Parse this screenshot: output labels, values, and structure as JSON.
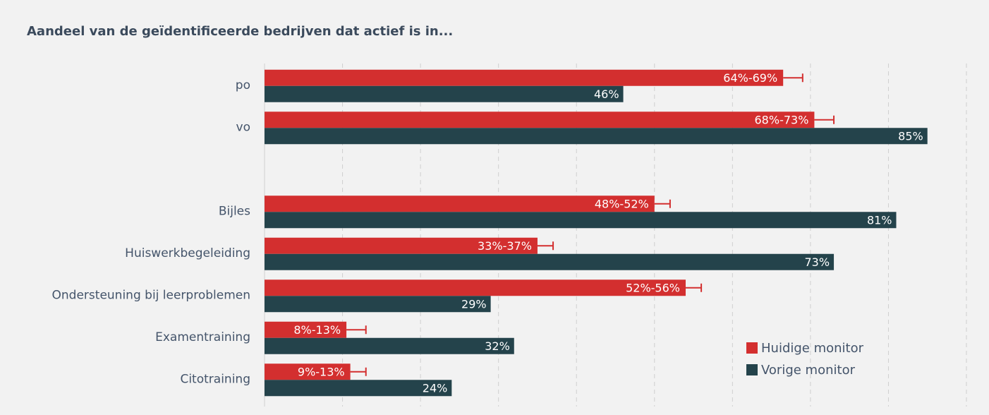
{
  "chart_data": {
    "type": "bar",
    "orientation": "horizontal",
    "title": "Aandeel van de geïdentificeerde bedrijven dat actief is in...",
    "categories": [
      "po",
      "vo",
      null,
      "Bijles",
      "Huiswerkbegeleiding",
      "Ondersteuning bij leerproblemen",
      "Examentraining",
      "Citotraining"
    ],
    "series": [
      {
        "name": "Huidige monitor",
        "color": "#d32f2f",
        "values": [
          66.5,
          70.5,
          null,
          50,
          35,
          54,
          10.5,
          11
        ],
        "errors": [
          2.5,
          2.5,
          null,
          2,
          2,
          2,
          2.5,
          2
        ],
        "value_labels": [
          "64%-69%",
          "68%-73%",
          null,
          "48%-52%",
          "33%-37%",
          "52%-56%",
          "8%-13%",
          "9%-13%"
        ]
      },
      {
        "name": "Vorige monitor",
        "color": "#24434b",
        "values": [
          46,
          85,
          null,
          81,
          73,
          29,
          32,
          24
        ],
        "value_labels": [
          "46%",
          "85%",
          null,
          "81%",
          "73%",
          "29%",
          "32%",
          "24%"
        ]
      }
    ],
    "xlim": [
      0,
      90
    ],
    "xticks": [
      10,
      20,
      30,
      40,
      50,
      60,
      70,
      80,
      90
    ],
    "grid": true,
    "legend": "lower right"
  }
}
